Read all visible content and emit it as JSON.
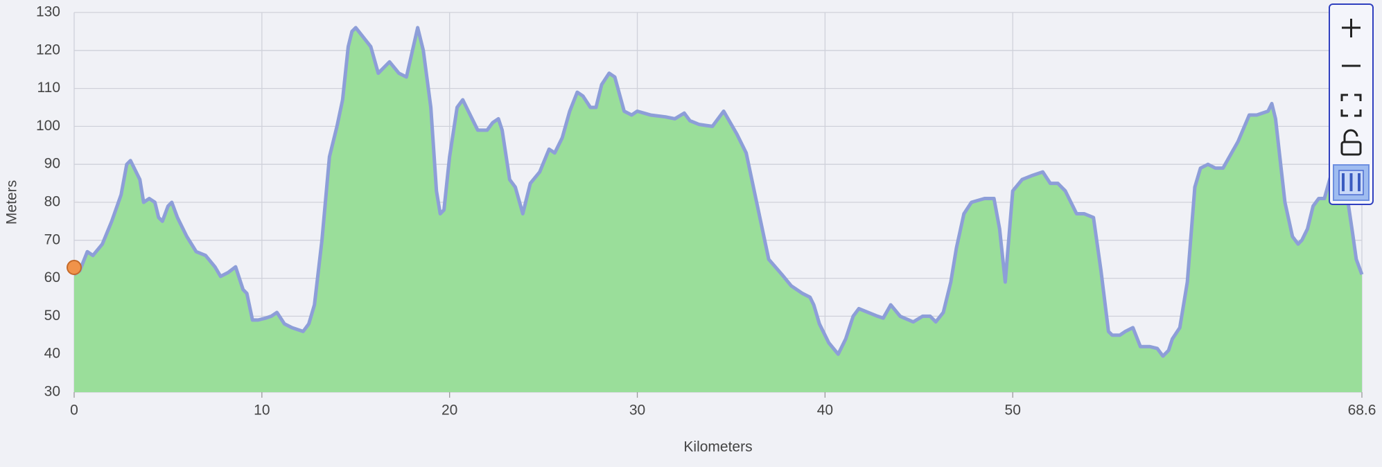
{
  "chart_data": {
    "type": "area",
    "x_label": "Kilometers",
    "y_label": "Meters",
    "xlim": [
      0,
      68.6
    ],
    "ylim": [
      30,
      130
    ],
    "xticks": [
      0,
      10,
      20,
      30,
      40,
      50,
      68.6
    ],
    "yticks": [
      30,
      40,
      50,
      60,
      70,
      80,
      90,
      100,
      110,
      120,
      130
    ],
    "grid": true,
    "fill_color": "#9ade9a",
    "line_color": "#8d9ed8",
    "x": [
      0,
      0.3,
      0.7,
      1.0,
      1.5,
      2.0,
      2.5,
      2.8,
      3.0,
      3.5,
      3.7,
      4.0,
      4.3,
      4.5,
      4.7,
      5.0,
      5.2,
      5.5,
      6.0,
      6.5,
      7.0,
      7.5,
      7.8,
      8.2,
      8.6,
      9.0,
      9.2,
      9.5,
      9.8,
      10.2,
      10.5,
      10.8,
      11.2,
      11.6,
      12.2,
      12.5,
      12.8,
      13.2,
      13.6,
      14.0,
      14.3,
      14.6,
      14.8,
      15.0,
      15.8,
      16.2,
      16.8,
      17.3,
      17.7,
      18.3,
      18.6,
      19.0,
      19.3,
      19.5,
      19.7,
      20.0,
      20.4,
      20.7,
      21.0,
      21.5,
      22.0,
      22.3,
      22.6,
      22.8,
      23.2,
      23.5,
      23.9,
      24.3,
      24.8,
      25.3,
      25.6,
      26.0,
      26.4,
      26.8,
      27.1,
      27.5,
      27.8,
      28.1,
      28.5,
      28.8,
      29.3,
      29.7,
      30.0,
      30.7,
      31.5,
      32.0,
      32.5,
      32.8,
      33.3,
      34.0,
      34.6,
      35.3,
      35.8,
      36.4,
      37.0,
      37.7,
      38.2,
      38.8,
      39.2,
      39.4,
      39.7,
      40.2,
      40.7,
      41.1,
      41.5,
      41.8,
      42.3,
      42.8,
      43.1,
      43.5,
      44.0,
      44.7,
      45.2,
      45.6,
      45.9,
      46.3,
      46.7,
      47.0,
      47.4,
      47.8,
      48.5,
      49.0,
      49.3,
      49.6,
      50.0,
      50.5,
      51.0,
      51.6,
      52.0,
      52.4,
      52.8,
      53.4,
      53.8,
      54.3,
      54.7,
      55.1,
      55.3,
      55.7,
      56.0,
      56.4,
      56.8,
      57.3,
      57.7,
      58.0,
      58.3,
      58.5,
      58.9,
      59.3,
      59.7,
      60.0,
      60.4,
      60.8,
      61.2,
      62.0,
      62.6,
      63.0,
      63.6,
      63.8,
      64.0,
      64.5,
      64.9,
      65.2,
      65.4,
      65.7,
      66.0,
      66.3,
      66.6,
      67.0,
      67.4,
      67.8,
      68.1,
      68.3,
      68.6
    ],
    "values": [
      61,
      62,
      67,
      66,
      69,
      75,
      82,
      90,
      91,
      86,
      80,
      81,
      80,
      76,
      75,
      79,
      80,
      76,
      71,
      67,
      66,
      63,
      60.5,
      61.5,
      63,
      57,
      56,
      49,
      49,
      49.5,
      50,
      51,
      48,
      47,
      46,
      48,
      53,
      70,
      92,
      100,
      107,
      121,
      125,
      126,
      121,
      114,
      117,
      114,
      113,
      126,
      120,
      105,
      83,
      77,
      78,
      92,
      105,
      107,
      104,
      99,
      99,
      101,
      102,
      99,
      86,
      84,
      77,
      85,
      88,
      94,
      93,
      97,
      104,
      109,
      108,
      105,
      105,
      111,
      114,
      113,
      104,
      103,
      104,
      103,
      102.5,
      102,
      103.5,
      101.5,
      100.5,
      100,
      104,
      98,
      93,
      79,
      65,
      61,
      58,
      56,
      55,
      53,
      48,
      43,
      40,
      44,
      50,
      52,
      51,
      50,
      49.5,
      53,
      50,
      48.5,
      50,
      50,
      48.5,
      51,
      59,
      68,
      77,
      80,
      81,
      81,
      73,
      59,
      83,
      86,
      87,
      88,
      85,
      85,
      83,
      77,
      77,
      76,
      62,
      46,
      45,
      45,
      46,
      47,
      42,
      42,
      41.5,
      39.5,
      41,
      44,
      47,
      59,
      84,
      89,
      90,
      89,
      89,
      96,
      103,
      103,
      104,
      106,
      102,
      80,
      71,
      69,
      70,
      73,
      79,
      81,
      81,
      88,
      89,
      82,
      72,
      65,
      61
    ]
  }
}
